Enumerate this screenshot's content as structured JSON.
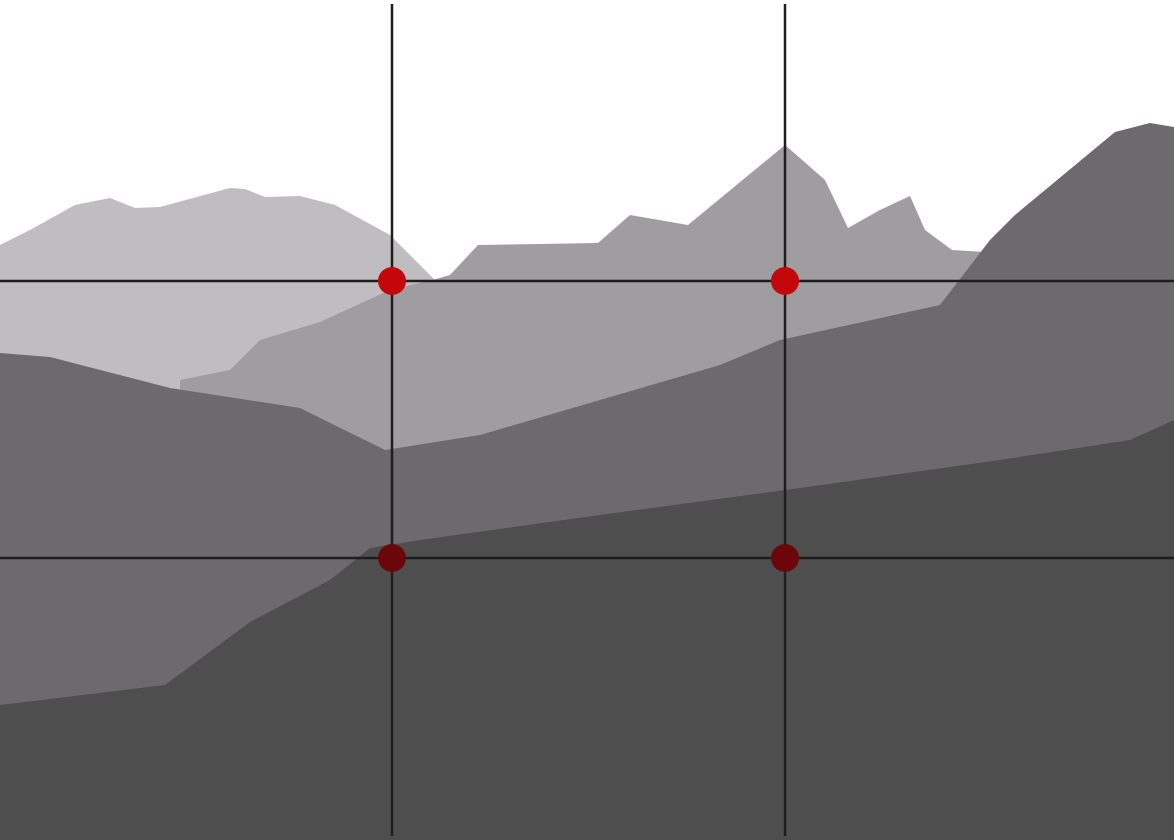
{
  "diagram": {
    "subject": "rule-of-thirds-grid-over-mountain-landscape",
    "colors": {
      "background": "#ffffff",
      "far_range": "#bfbdbf",
      "middle_range": "#9f9d9f",
      "near_range": "#6c6a6c",
      "foreground": "#4f4e4f",
      "grid_line": "#1e1e1e",
      "upper_points": "#c4070a",
      "lower_points": "#6b0708"
    },
    "grid": {
      "rows": 3,
      "columns": 3
    },
    "intersection_points": 4
  }
}
